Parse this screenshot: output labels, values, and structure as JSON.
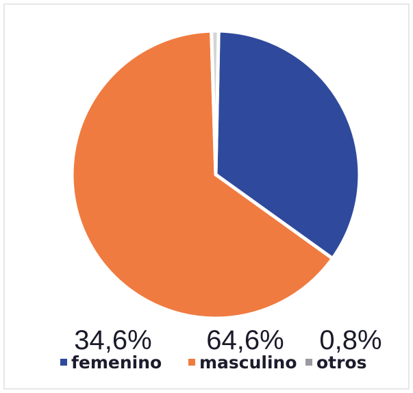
{
  "chart_data": {
    "type": "pie",
    "categories": [
      "femenino",
      "masculino",
      "otros"
    ],
    "values": [
      34.6,
      64.6,
      0.8
    ],
    "value_labels": [
      "34,6%",
      "64,6%",
      "0,8%"
    ],
    "colors": [
      "#2f4a9c",
      "#f07b40",
      "#d4d4d4"
    ]
  }
}
